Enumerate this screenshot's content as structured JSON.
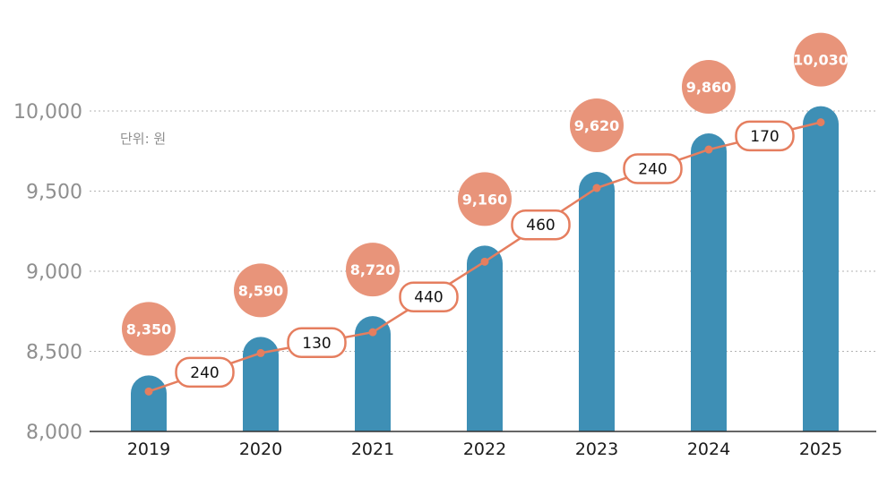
{
  "chart_data": {
    "type": "bar",
    "unit_note": "단위: 원",
    "categories": [
      "2019",
      "2020",
      "2021",
      "2022",
      "2023",
      "2024",
      "2025"
    ],
    "values": [
      8350,
      8590,
      8720,
      9160,
      9620,
      9860,
      10030
    ],
    "value_labels": [
      "8,350",
      "8,590",
      "8,720",
      "9,160",
      "9,620",
      "9,860",
      "10,030"
    ],
    "increase_labels": [
      "240",
      "130",
      "440",
      "460",
      "240",
      "170"
    ],
    "ylim": [
      8000,
      10000
    ],
    "yticks": [
      8000,
      8500,
      9000,
      9500,
      10000
    ],
    "ytick_labels": [
      "8,000",
      "8,500",
      "9,000",
      "9,500",
      "10,000"
    ],
    "grid": true,
    "colors": {
      "bar": "#3e8fb5",
      "bubble": "#e8947a",
      "line": "#e57e5f",
      "grid": "#b3b3b3",
      "axis": "#333333"
    }
  }
}
